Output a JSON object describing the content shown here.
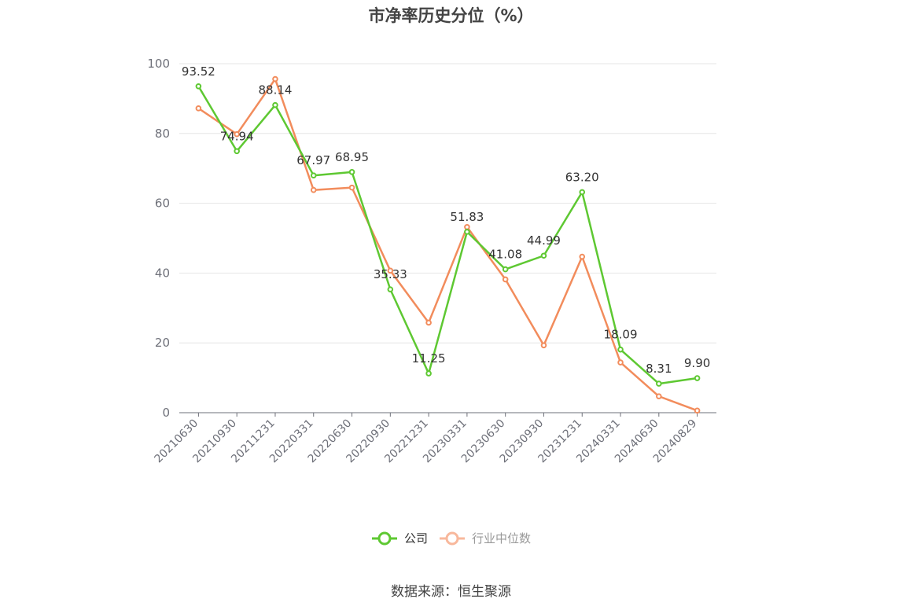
{
  "chart_data": {
    "type": "line",
    "title": "市净率历史分位（%）",
    "categories": [
      "20210630",
      "20210930",
      "20211231",
      "20220331",
      "20220630",
      "20220930",
      "20221231",
      "20230331",
      "20230630",
      "20230930",
      "20231231",
      "20240331",
      "20240630",
      "20240829"
    ],
    "ylim": [
      0,
      100
    ],
    "yticks": [
      0,
      20,
      40,
      60,
      80,
      100
    ],
    "grid": true,
    "legend_position": "bottom",
    "series": [
      {
        "name": "公司",
        "color": "#5ec832",
        "values": [
          93.52,
          74.94,
          88.14,
          67.97,
          68.95,
          35.33,
          11.25,
          51.83,
          41.08,
          44.99,
          63.2,
          18.09,
          8.31,
          9.9
        ],
        "labels": [
          "93.52",
          "74.94",
          "88.14",
          "67.97",
          "68.95",
          "35.33",
          "11.25",
          "51.83",
          "41.08",
          "44.99",
          "63.20",
          "18.09",
          "8.31",
          "9.90"
        ]
      },
      {
        "name": "行业中位数",
        "color": "#f28c5c",
        "values": [
          87.2,
          79.8,
          95.6,
          63.8,
          64.5,
          40.7,
          25.8,
          53.2,
          38.2,
          19.3,
          44.7,
          14.4,
          4.7,
          0.6
        ]
      }
    ]
  },
  "colors": {
    "company": "#5ec832",
    "industry": "#f28c5c",
    "industry_legend": "#f8b89c",
    "grid": "#e6e6e6",
    "axis": "#6e7079",
    "tick_text": "#6e7079"
  },
  "footer": {
    "source": "数据来源：恒生聚源"
  }
}
